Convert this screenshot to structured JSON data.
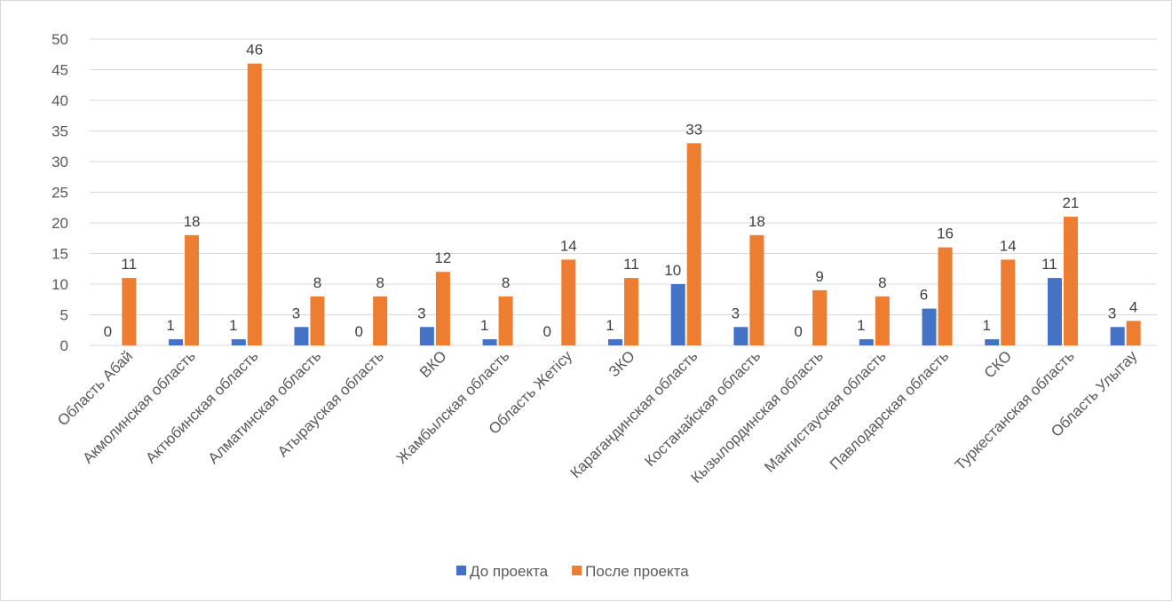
{
  "chart_data": {
    "type": "bar",
    "title": "",
    "xlabel": "",
    "ylabel": "",
    "ylim": [
      0,
      50
    ],
    "ytick_step": 5,
    "grid": true,
    "legend_position": "bottom",
    "categories": [
      "Область Абай",
      "Акмолинская область",
      "Актюбинская область",
      "Алматинская область",
      "Атырауская область",
      "ВКО",
      "Жамбылская область",
      "Область Жетісу",
      "ЗКО",
      "Карагандинская область",
      "Костанайская область",
      "Кызылординская область",
      "Мангистауская область",
      "Павлодарская область",
      "СКО",
      "Туркестанская область",
      "Область Улытау"
    ],
    "series": [
      {
        "name": "До проекта",
        "color": "#4472C4",
        "values": [
          0,
          1,
          1,
          3,
          0,
          3,
          1,
          0,
          1,
          10,
          3,
          0,
          1,
          6,
          1,
          11,
          3
        ]
      },
      {
        "name": "После проекта",
        "color": "#ED7D31",
        "values": [
          11,
          18,
          46,
          8,
          8,
          12,
          8,
          14,
          11,
          33,
          18,
          9,
          8,
          16,
          14,
          21,
          4
        ]
      }
    ]
  }
}
